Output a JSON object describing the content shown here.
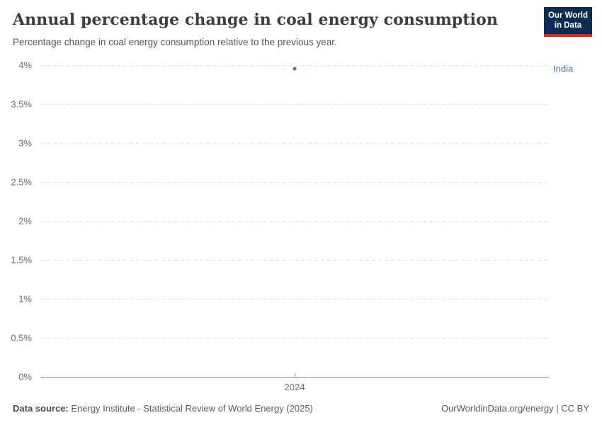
{
  "header": {
    "title": "Annual percentage change in coal energy consumption",
    "subtitle": "Percentage change in coal energy consumption relative to the previous year."
  },
  "logo": {
    "line1": "Our World",
    "line2": "in Data",
    "bg_color": "#0d2a52",
    "accent_color": "#d02824"
  },
  "chart_data": {
    "type": "scatter",
    "title": "Annual percentage change in coal energy consumption",
    "subtitle": "Percentage change in coal energy consumption relative to the previous year.",
    "series": [
      {
        "name": "India",
        "color": "#4a6ba6",
        "points": [
          {
            "x": 2024,
            "y": 3.95
          }
        ]
      }
    ],
    "xticks": [
      2024
    ],
    "yticks": [
      0,
      0.5,
      1,
      1.5,
      2,
      2.5,
      3,
      3.5,
      4
    ],
    "ytick_suffix": "%",
    "ylim": [
      0,
      4
    ],
    "xlabel": "",
    "ylabel": "",
    "grid": "horizontal-dashed",
    "legend_position": "right-of-point"
  },
  "footer": {
    "data_source_label": "Data source:",
    "data_source_text": " Energy Institute - Statistical Review of World Energy (2025)",
    "link_text": "OurWorldinData.org/energy | CC BY"
  }
}
